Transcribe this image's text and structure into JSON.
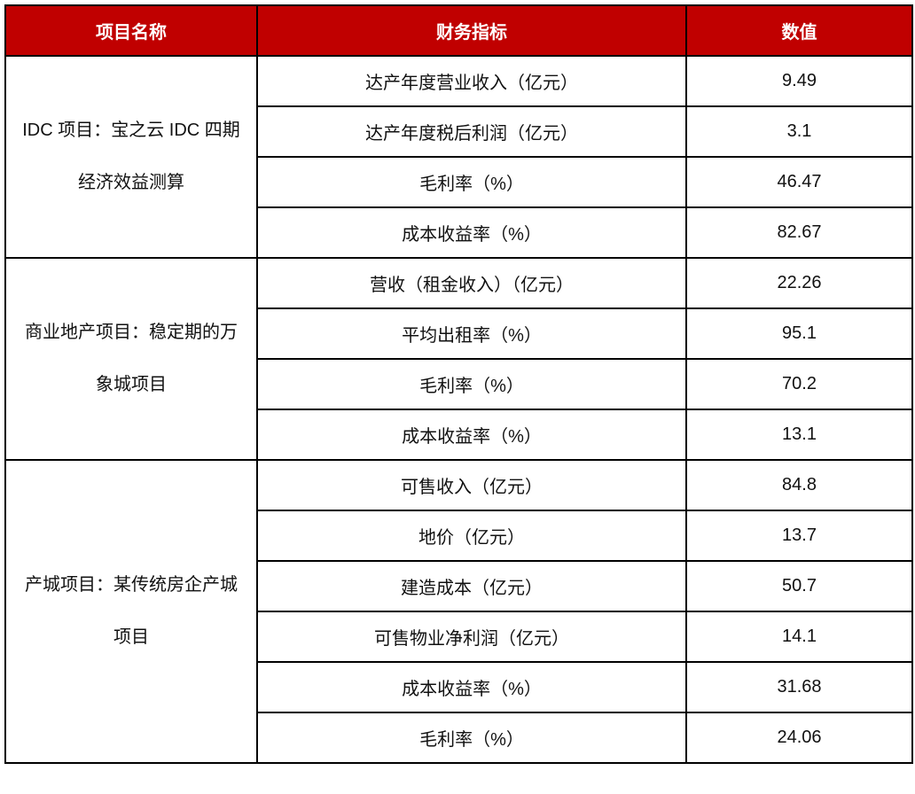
{
  "table": {
    "headers": [
      "项目名称",
      "财务指标",
      "数值"
    ],
    "groups": [
      {
        "project": "IDC 项目：宝之云 IDC 四期经济效益测算",
        "rows": [
          {
            "metric": "达产年度营业收入（亿元）",
            "value": "9.49"
          },
          {
            "metric": "达产年度税后利润（亿元）",
            "value": "3.1"
          },
          {
            "metric": "毛利率（%）",
            "value": "46.47"
          },
          {
            "metric": "成本收益率（%）",
            "value": "82.67"
          }
        ]
      },
      {
        "project": "商业地产项目：稳定期的万象城项目",
        "rows": [
          {
            "metric": "营收（租金收入）（亿元）",
            "value": "22.26"
          },
          {
            "metric": "平均出租率（%）",
            "value": "95.1"
          },
          {
            "metric": "毛利率（%）",
            "value": "70.2"
          },
          {
            "metric": "成本收益率（%）",
            "value": "13.1"
          }
        ]
      },
      {
        "project": "产城项目：某传统房企产城项目",
        "rows": [
          {
            "metric": "可售收入（亿元）",
            "value": "84.8"
          },
          {
            "metric": "地价（亿元）",
            "value": "13.7"
          },
          {
            "metric": "建造成本（亿元）",
            "value": "50.7"
          },
          {
            "metric": "可售物业净利润（亿元）",
            "value": "14.1"
          },
          {
            "metric": "成本收益率（%）",
            "value": "31.68"
          },
          {
            "metric": "毛利率（%）",
            "value": "24.06"
          }
        ]
      }
    ]
  },
  "colors": {
    "header_bg": "#c00000",
    "header_text": "#ffffff",
    "border": "#000000"
  }
}
